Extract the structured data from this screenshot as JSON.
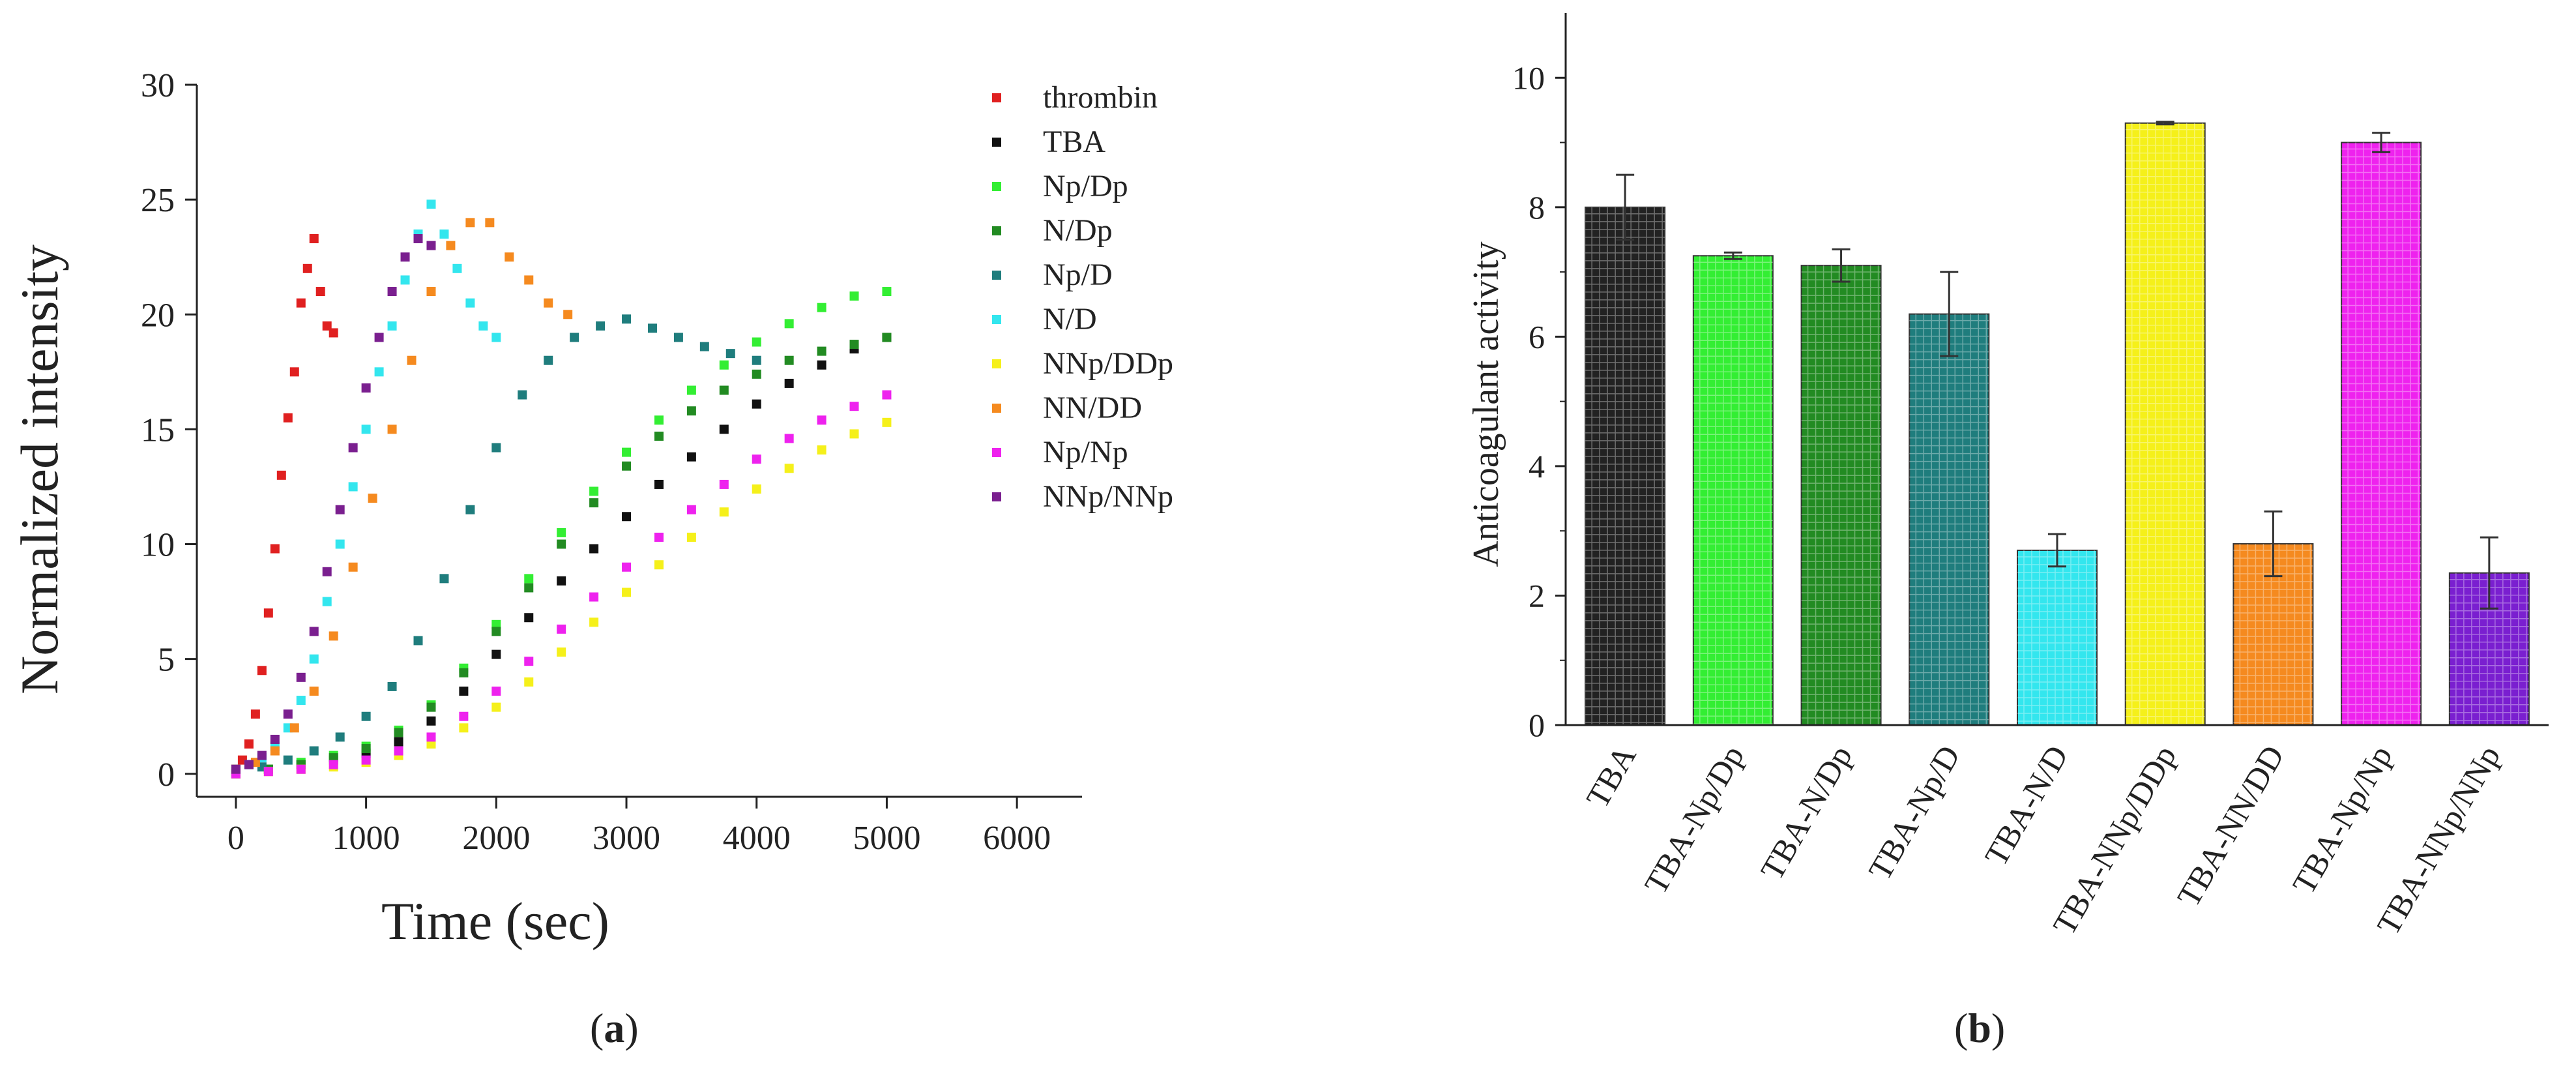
{
  "captions": {
    "a_open": "(",
    "a_letter": "a",
    "a_close": ")",
    "b_open": "(",
    "b_letter": "b",
    "b_close": ")"
  },
  "chart_data": [
    {
      "type": "scatter",
      "xlabel": "Time (sec)",
      "ylabel": "Normalized intensity",
      "xlim": [
        -300,
        6500
      ],
      "ylim": [
        -1,
        30
      ],
      "xticks": [
        "0",
        "1000",
        "2000",
        "3000",
        "4000",
        "5000",
        "6000"
      ],
      "xtick_values": [
        0,
        1000,
        2000,
        3000,
        4000,
        5000,
        6000
      ],
      "yticks": [
        "0",
        "5",
        "10",
        "15",
        "20",
        "25",
        "30"
      ],
      "ytick_values": [
        0,
        5,
        10,
        15,
        20,
        25,
        30
      ],
      "legend_position": "right",
      "series": [
        {
          "name": "thrombin",
          "color": "#e02020",
          "x": [
            0,
            50,
            100,
            150,
            200,
            250,
            300,
            350,
            400,
            450,
            500,
            550,
            600,
            650,
            700,
            750
          ],
          "y": [
            0.2,
            0.6,
            1.3,
            2.6,
            4.5,
            7.0,
            9.8,
            13.0,
            15.5,
            17.5,
            20.5,
            22.0,
            23.3,
            21.0,
            19.5,
            19.2
          ]
        },
        {
          "name": "TBA",
          "color": "#111111",
          "x": [
            0,
            250,
            500,
            750,
            1000,
            1250,
            1500,
            1750,
            2000,
            2250,
            2500,
            2750,
            3000,
            3250,
            3500,
            3750,
            4000,
            4250,
            4500,
            4750,
            5000
          ],
          "y": [
            0.0,
            0.2,
            0.4,
            0.6,
            0.9,
            1.4,
            2.3,
            3.6,
            5.2,
            6.8,
            8.4,
            9.8,
            11.2,
            12.6,
            13.8,
            15.0,
            16.1,
            17.0,
            17.8,
            18.5,
            19.0
          ]
        },
        {
          "name": "Np/Dp",
          "color": "#33ee33",
          "x": [
            0,
            250,
            500,
            750,
            1000,
            1250,
            1500,
            1750,
            2000,
            2250,
            2500,
            2750,
            3000,
            3250,
            3500,
            3750,
            4000,
            4250,
            4500,
            4750,
            5000
          ],
          "y": [
            0.0,
            0.2,
            0.5,
            0.8,
            1.2,
            1.9,
            3.0,
            4.6,
            6.5,
            8.5,
            10.5,
            12.3,
            14.0,
            15.4,
            16.7,
            17.8,
            18.8,
            19.6,
            20.3,
            20.8,
            21.0
          ]
        },
        {
          "name": "N/Dp",
          "color": "#228b22",
          "x": [
            0,
            250,
            500,
            750,
            1000,
            1250,
            1500,
            1750,
            2000,
            2250,
            2500,
            2750,
            3000,
            3250,
            3500,
            3750,
            4000,
            4250,
            4500,
            4750,
            5000
          ],
          "y": [
            0.0,
            0.2,
            0.4,
            0.7,
            1.1,
            1.8,
            2.9,
            4.4,
            6.2,
            8.1,
            10.0,
            11.8,
            13.4,
            14.7,
            15.8,
            16.7,
            17.4,
            18.0,
            18.4,
            18.7,
            19.0
          ]
        },
        {
          "name": "Np/D",
          "color": "#1f7d7d",
          "x": [
            0,
            200,
            400,
            600,
            800,
            1000,
            1200,
            1400,
            1600,
            1800,
            2000,
            2200,
            2400,
            2600,
            2800,
            3000,
            3200,
            3400,
            3600,
            3800,
            4000
          ],
          "y": [
            0.1,
            0.3,
            0.6,
            1.0,
            1.6,
            2.5,
            3.8,
            5.8,
            8.5,
            11.5,
            14.2,
            16.5,
            18.0,
            19.0,
            19.5,
            19.8,
            19.4,
            19.0,
            18.6,
            18.3,
            18.0
          ]
        },
        {
          "name": "N/D",
          "color": "#33e6ee",
          "x": [
            0,
            100,
            200,
            300,
            400,
            500,
            600,
            700,
            800,
            900,
            1000,
            1100,
            1200,
            1300,
            1400,
            1500,
            1600,
            1700,
            1800,
            1900,
            2000
          ],
          "y": [
            0.2,
            0.4,
            0.7,
            1.2,
            2.0,
            3.2,
            5.0,
            7.5,
            10.0,
            12.5,
            15.0,
            17.5,
            19.5,
            21.5,
            23.5,
            24.8,
            23.5,
            22.0,
            20.5,
            19.5,
            19.0
          ]
        },
        {
          "name": "NNp/DDp",
          "color": "#f5f01a",
          "x": [
            0,
            250,
            500,
            750,
            1000,
            1250,
            1500,
            1750,
            2000,
            2250,
            2500,
            2750,
            3000,
            3250,
            3500,
            3750,
            4000,
            4250,
            4500,
            4750,
            5000
          ],
          "y": [
            0.0,
            0.1,
            0.2,
            0.3,
            0.5,
            0.8,
            1.3,
            2.0,
            2.9,
            4.0,
            5.3,
            6.6,
            7.9,
            9.1,
            10.3,
            11.4,
            12.4,
            13.3,
            14.1,
            14.8,
            15.3
          ]
        },
        {
          "name": "NN/DD",
          "color": "#f58a1f",
          "x": [
            0,
            150,
            300,
            450,
            600,
            750,
            900,
            1050,
            1200,
            1350,
            1500,
            1650,
            1800,
            1950,
            2100,
            2250,
            2400,
            2550
          ],
          "y": [
            0.2,
            0.5,
            1.0,
            2.0,
            3.6,
            6.0,
            9.0,
            12.0,
            15.0,
            18.0,
            21.0,
            23.0,
            24.0,
            24.0,
            22.5,
            21.5,
            20.5,
            20.0
          ]
        },
        {
          "name": "Np/Np",
          "color": "#ee22ee",
          "x": [
            0,
            250,
            500,
            750,
            1000,
            1250,
            1500,
            1750,
            2000,
            2250,
            2500,
            2750,
            3000,
            3250,
            3500,
            3750,
            4000,
            4250,
            4500,
            4750,
            5000
          ],
          "y": [
            0.0,
            0.1,
            0.2,
            0.4,
            0.6,
            1.0,
            1.6,
            2.5,
            3.6,
            4.9,
            6.3,
            7.7,
            9.0,
            10.3,
            11.5,
            12.6,
            13.7,
            14.6,
            15.4,
            16.0,
            16.5
          ]
        },
        {
          "name": "NNp/NNp",
          "color": "#7a1f8f",
          "x": [
            0,
            100,
            200,
            300,
            400,
            500,
            600,
            700,
            800,
            900,
            1000,
            1100,
            1200,
            1300,
            1400,
            1500
          ],
          "y": [
            0.2,
            0.4,
            0.8,
            1.5,
            2.6,
            4.2,
            6.2,
            8.8,
            11.5,
            14.2,
            16.8,
            19.0,
            21.0,
            22.5,
            23.3,
            23.0
          ]
        }
      ]
    },
    {
      "type": "bar",
      "ylabel": "Anticoagulant activity",
      "ylim": [
        0,
        11
      ],
      "yticks": [
        "0",
        "2",
        "4",
        "6",
        "8",
        "10"
      ],
      "ytick_values": [
        0,
        2,
        4,
        6,
        8,
        10
      ],
      "categories": [
        "TBA",
        "TBA-Np/Dp",
        "TBA-N/Dp",
        "TBA-Np/D",
        "TBA-N/D",
        "TBA-NNp/DDp",
        "TBA-NN/DD",
        "TBA-Np/Np",
        "TBA-NNp/NNp"
      ],
      "values": [
        8.0,
        7.25,
        7.1,
        6.35,
        2.7,
        9.3,
        2.8,
        9.0,
        2.35
      ],
      "errors": [
        0.5,
        0.05,
        0.25,
        0.65,
        0.25,
        0.02,
        0.5,
        0.15,
        0.55
      ],
      "colors": [
        "#222222",
        "#33ee33",
        "#228b22",
        "#1f7d7d",
        "#33e6ee",
        "#f5f01a",
        "#f58a1f",
        "#ee22ee",
        "#7a1fd0"
      ]
    }
  ]
}
